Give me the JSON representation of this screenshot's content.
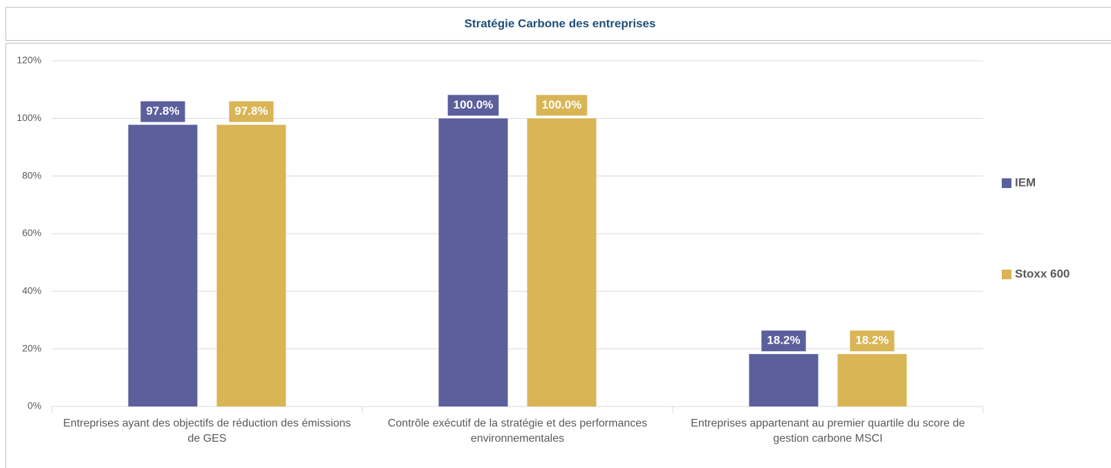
{
  "chart_data": {
    "type": "bar",
    "title": "Stratégie Carbone des entreprises",
    "categories": [
      "Entreprises ayant des objectifs de réduction des émissions de GES",
      "Contrôle exécutif de la stratégie et des performances environnementales",
      "Entreprises appartenant au premier quartile du score de gestion carbone MSCI"
    ],
    "series": [
      {
        "name": "IEM",
        "color": "#5b5f9c",
        "values": [
          97.8,
          100.0,
          18.2
        ],
        "value_labels": [
          "97.8%",
          "100.0%",
          "18.2%"
        ]
      },
      {
        "name": "Stoxx 600",
        "color": "#d9b556",
        "values": [
          97.8,
          100.0,
          18.2
        ],
        "value_labels": [
          "97.8%",
          "100.0%",
          "18.2%"
        ]
      }
    ],
    "ylim": [
      0,
      120
    ],
    "yticks": [
      {
        "value": 0,
        "label": "0%"
      },
      {
        "value": 20,
        "label": "20%"
      },
      {
        "value": 40,
        "label": "40%"
      },
      {
        "value": 60,
        "label": "60%"
      },
      {
        "value": 80,
        "label": "80%"
      },
      {
        "value": 100,
        "label": "100%"
      },
      {
        "value": 120,
        "label": "120%"
      }
    ],
    "grid": true,
    "legend": "right"
  }
}
